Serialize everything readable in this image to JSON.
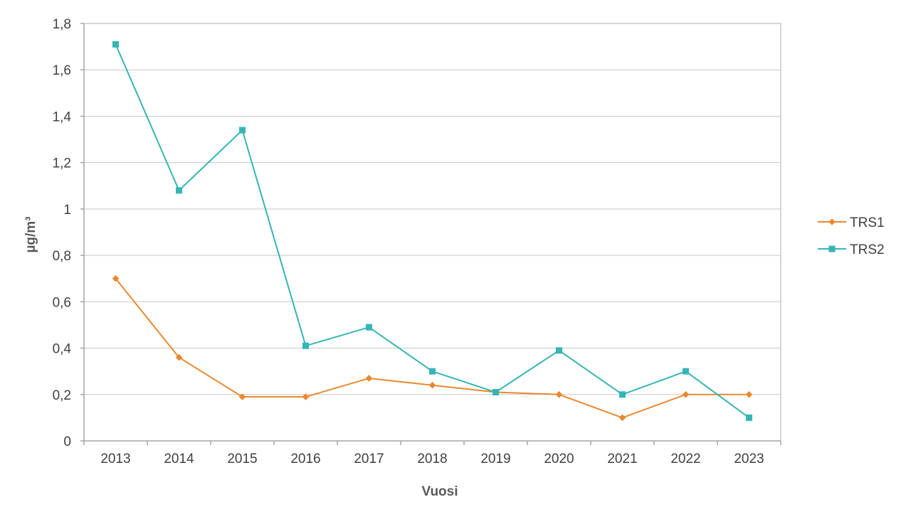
{
  "chart_data": {
    "type": "line",
    "title": "",
    "xlabel": "Vuosi",
    "ylabel": "µg/m³",
    "x": [
      "2013",
      "2014",
      "2015",
      "2016",
      "2017",
      "2018",
      "2019",
      "2020",
      "2021",
      "2022",
      "2023"
    ],
    "ylim": [
      0,
      1.8
    ],
    "yticks": [
      0,
      0.2,
      0.4,
      0.6,
      0.8,
      1.0,
      1.2,
      1.4,
      1.6,
      1.8
    ],
    "ytick_labels": [
      "0",
      "0,2",
      "0,4",
      "0,6",
      "0,8",
      "1",
      "1,2",
      "1,4",
      "1,6",
      "1,8"
    ],
    "grid": true,
    "legend_position": "right",
    "series": [
      {
        "name": "TRS1",
        "color": "#e8892f",
        "marker": "diamond",
        "values": [
          0.7,
          0.36,
          0.19,
          0.19,
          0.27,
          0.24,
          0.21,
          0.2,
          0.1,
          0.2,
          0.2
        ]
      },
      {
        "name": "TRS2",
        "color": "#35b5b5",
        "marker": "square",
        "values": [
          1.71,
          1.08,
          1.34,
          0.41,
          0.49,
          0.3,
          0.21,
          0.39,
          0.2,
          0.3,
          0.1
        ]
      }
    ]
  }
}
